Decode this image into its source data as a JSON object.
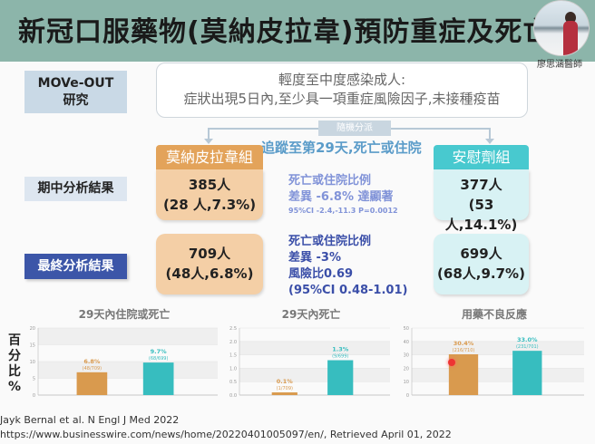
{
  "header": {
    "title": "新冠口服藥物(莫納皮拉韋)預防重症及死亡",
    "presenter": "廖思涵醫師"
  },
  "study": {
    "name": "MOVe-OUT",
    "label": "研究"
  },
  "criteria": {
    "line1": "輕度至中度感染成人:",
    "line2": "症狀出現5日內,至少具一項重症風險因子,未接種疫苗"
  },
  "randomization": "隨機分派",
  "follow_up": "追蹤至第29天,死亡或住院",
  "groups": {
    "molnupiravir": "莫納皮拉韋組",
    "placebo": "安慰劑組"
  },
  "rows": {
    "interim": "期中分析結果",
    "final": "最終分析結果"
  },
  "interim": {
    "mol_n": "385人",
    "mol_events": "(28 人,7.3%)",
    "pla_n": "377人",
    "pla_events": "(53人,14.1%)",
    "line1": "死亡或住院比例",
    "line2": "差異 -6.8% 達顯著",
    "line3": "95%CI -2.4,-11.3 P=0.0012"
  },
  "final": {
    "mol_n": "709人",
    "mol_events": "(48人,6.8%)",
    "pla_n": "699人",
    "pla_events": "(68人,9.7%)",
    "line1": "死亡或住院比例",
    "line2": "差異 -3%",
    "line3": "風險比0.69",
    "line4": "(95%CI 0.48-1.01)"
  },
  "y_axis_label": [
    "百",
    "分",
    "比",
    "%"
  ],
  "colors": {
    "molnupiravir": "#d99a4e",
    "placebo": "#37bdbf",
    "header": "#8cb5aa",
    "final_label": "#3c56a8"
  },
  "chart_data": [
    {
      "type": "bar",
      "title": "29天內住院或死亡",
      "categories": [
        "莫納皮拉韋組",
        "安慰劑組"
      ],
      "values": [
        6.8,
        9.7
      ],
      "labels": [
        "6.8%",
        "9.7%"
      ],
      "sublabels": [
        "(48/709)",
        "(68/699)"
      ],
      "ylim": [
        0,
        20
      ],
      "yticks": [
        "0",
        "5",
        "10",
        "15",
        "20"
      ],
      "grid": true
    },
    {
      "type": "bar",
      "title": "29天內死亡",
      "categories": [
        "莫納皮拉韋組",
        "安慰劑組"
      ],
      "values": [
        0.1,
        1.3
      ],
      "labels": [
        "0.1%",
        "1.3%"
      ],
      "sublabels": [
        "(1/709)",
        "(9/699)"
      ],
      "ylim": [
        0,
        2.5
      ],
      "yticks": [
        "0.0",
        "0.5",
        "1.0",
        "1.5",
        "2.0",
        "2.5"
      ],
      "grid": true
    },
    {
      "type": "bar",
      "title": "用藥不良反應",
      "categories": [
        "莫納皮拉韋組",
        "安慰劑組"
      ],
      "values": [
        30.4,
        33.0
      ],
      "labels": [
        "30.4%",
        "33.0%"
      ],
      "sublabels": [
        "(216/710)",
        "(231/701)"
      ],
      "ylim": [
        0,
        50
      ],
      "yticks": [
        "0",
        "10",
        "20",
        "30",
        "40",
        "50"
      ],
      "grid": true
    }
  ],
  "citations": [
    "Jayk Bernal et al. N Engl J Med 2022",
    "https://www.businesswire.com/news/home/20220401005097/en/, Retrieved April 01, 2022"
  ]
}
